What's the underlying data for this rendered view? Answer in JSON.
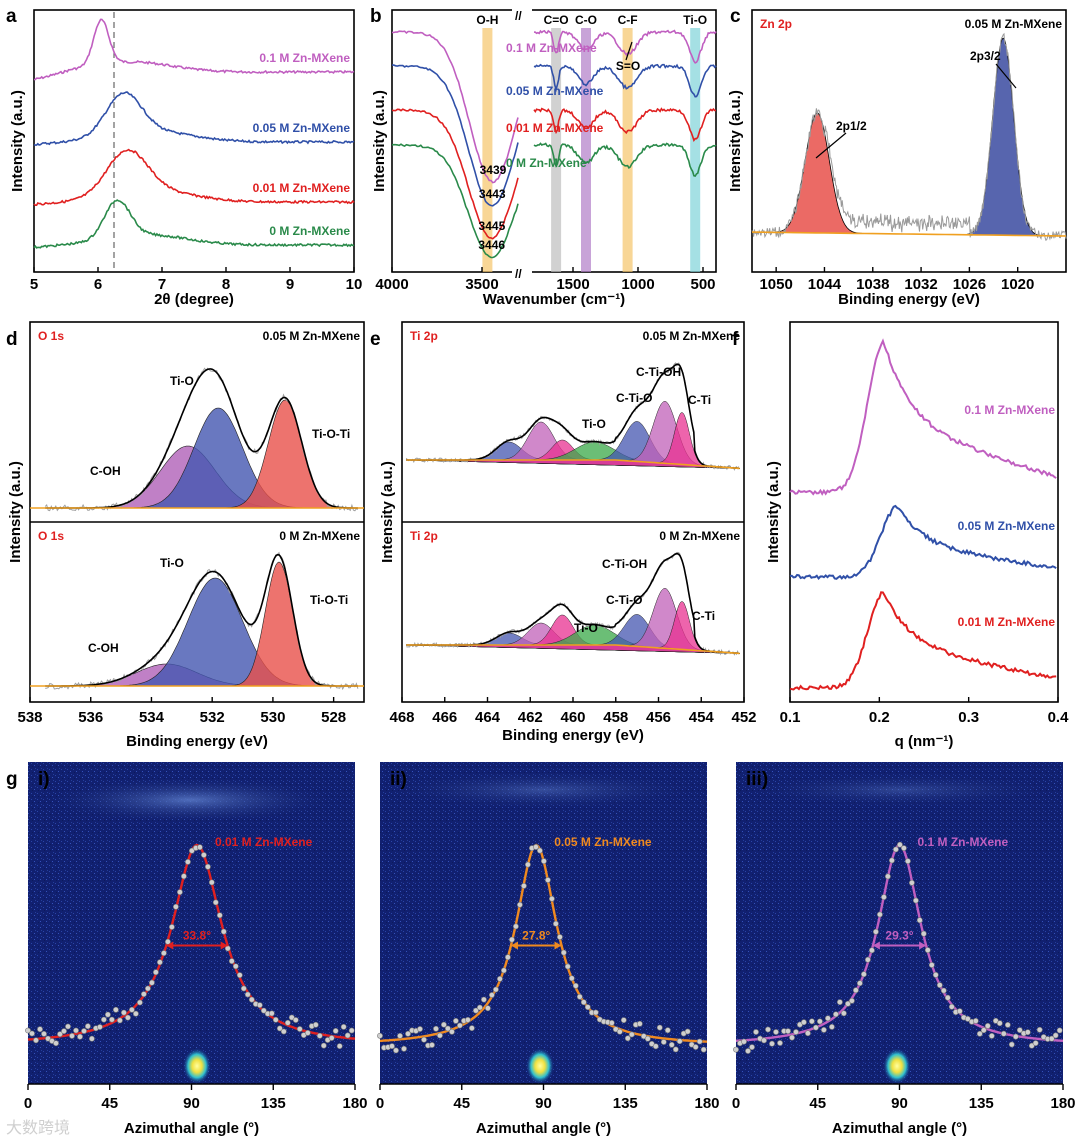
{
  "panels": {
    "a": {
      "letter": "a"
    },
    "b": {
      "letter": "b"
    },
    "c": {
      "letter": "c"
    },
    "d": {
      "letter": "d"
    },
    "e": {
      "letter": "e"
    },
    "f": {
      "letter": "f"
    },
    "g": {
      "letter": "g"
    }
  },
  "watermark": "大数跨境",
  "chart_data": [
    {
      "id": "a",
      "type": "line",
      "title": "",
      "xlabel": "2θ (degree)",
      "ylabel": "Intensity (a.u.)",
      "xlim": [
        5,
        10
      ],
      "xticks": [
        5,
        6,
        7,
        8,
        9,
        10
      ],
      "reference_line_x": 6.25,
      "series": [
        {
          "name": "0.1 M Zn-MXene",
          "color": "#c05fc0",
          "peak_x": 6.05
        },
        {
          "name": "0.05 M Zn-MXene",
          "color": "#3050a8",
          "peak_x": 6.4
        },
        {
          "name": "0.01 M Zn-MXene",
          "color": "#e02020",
          "peak_x": 6.45
        },
        {
          "name": "0 M Zn-MXene",
          "color": "#2a8a4a",
          "peak_x": 6.3
        }
      ]
    },
    {
      "id": "b",
      "type": "line",
      "title": "",
      "xlabel": "Wavenumber (cm⁻¹)",
      "ylabel": "Intensity (a.u.)",
      "xticks": [
        4000,
        3500,
        1500,
        1000,
        500
      ],
      "axis_break": true,
      "bands": [
        {
          "label": "O-H",
          "x": 3470,
          "color": "#f5c46a"
        },
        {
          "label": "C=O",
          "x": 1630,
          "color": "#bdbdbd"
        },
        {
          "label": "C-O",
          "x": 1400,
          "color": "#b07cc8"
        },
        {
          "label": "C-F",
          "x": 1080,
          "color": "#f5c46a"
        },
        {
          "label": "Ti-O",
          "x": 560,
          "color": "#7fd3d8"
        }
      ],
      "annotations": [
        "S=O"
      ],
      "series": [
        {
          "name": "0.1 M Zn-MXene",
          "color": "#c05fc0",
          "oh_min": 3439
        },
        {
          "name": "0.05 M Zn-MXene",
          "color": "#3050a8",
          "oh_min": 3443
        },
        {
          "name": "0.01 M Zn-MXene",
          "color": "#e02020",
          "oh_min": 3445
        },
        {
          "name": "0 M Zn-MXene",
          "color": "#2a8a4a",
          "oh_min": 3446
        }
      ]
    },
    {
      "id": "c",
      "type": "area",
      "title": "Zn 2p",
      "sample": "0.05 M Zn-MXene",
      "xlabel": "Binding energy (eV)",
      "ylabel": "Intensity (a.u.)",
      "xlim": [
        1053,
        1014
      ],
      "xticks": [
        1050,
        1044,
        1038,
        1032,
        1026,
        1020
      ],
      "peaks": [
        {
          "label": "2p1/2",
          "center": 1044.9,
          "color": "#e8504a"
        },
        {
          "label": "2p3/2",
          "center": 1021.8,
          "color": "#3a4aa0"
        }
      ]
    },
    {
      "id": "d",
      "type": "area",
      "title": "O 1s",
      "xlabel": "Binding energy (eV)",
      "ylabel": "Intensity (a.u.)",
      "xlim": [
        538,
        527
      ],
      "xticks": [
        538,
        536,
        534,
        532,
        530,
        528
      ],
      "subplots": [
        {
          "sample": "0.05 M Zn-MXene",
          "peaks": [
            {
              "label": "C-OH",
              "center": 532.8,
              "color": "#b060b8"
            },
            {
              "label": "Ti-O",
              "center": 531.8,
              "color": "#4456b0"
            },
            {
              "label": "Ti-O-Ti",
              "center": 529.6,
              "color": "#e8504a"
            }
          ]
        },
        {
          "sample": "0 M Zn-MXene",
          "peaks": [
            {
              "label": "C-OH",
              "center": 533.5,
              "color": "#b060b8"
            },
            {
              "label": "Ti-O",
              "center": 531.9,
              "color": "#4456b0"
            },
            {
              "label": "Ti-O-Ti",
              "center": 529.8,
              "color": "#e8504a"
            }
          ]
        }
      ]
    },
    {
      "id": "e",
      "type": "area",
      "title": "Ti 2p",
      "xlabel": "Binding energy (eV)",
      "ylabel": "Intensity (a.u.)",
      "xlim": [
        468,
        452
      ],
      "xticks": [
        468,
        466,
        464,
        462,
        460,
        458,
        456,
        454,
        452
      ],
      "subplots": [
        {
          "sample": "0.05 M Zn-MXene",
          "labels": [
            "C-Ti-OH",
            "C-Ti-O",
            "Ti-O",
            "C-Ti"
          ]
        },
        {
          "sample": "0 M Zn-MXene",
          "labels": [
            "C-Ti-OH",
            "C-Ti-O",
            "Ti-O",
            "C-Ti"
          ]
        }
      ]
    },
    {
      "id": "f",
      "type": "line",
      "title": "",
      "xlabel": "q (nm⁻¹)",
      "ylabel": "Intensity (a.u.)",
      "xlim": [
        0.1,
        0.4
      ],
      "xticks": [
        0.1,
        0.2,
        0.3,
        0.4
      ],
      "series": [
        {
          "name": "0.1 M Zn-MXene",
          "color": "#c05fc0",
          "peak_q": 0.205
        },
        {
          "name": "0.05 M Zn-MXene",
          "color": "#3050a8",
          "peak_q": 0.22
        },
        {
          "name": "0.01 M Zn-MXene",
          "color": "#e02020",
          "peak_q": 0.205
        }
      ]
    },
    {
      "id": "g",
      "type": "scatter",
      "title": "",
      "xlabel": "Azimuthal angle (°)",
      "xlim": [
        0,
        180
      ],
      "xticks": [
        0,
        45,
        90,
        135,
        180
      ],
      "subplots": [
        {
          "index": "i)",
          "sample": "0.01 M Zn-MXene",
          "fwhm": "33.8°",
          "color": "#e02020",
          "center": 93
        },
        {
          "index": "ii)",
          "sample": "0.05 M Zn-MXene",
          "fwhm": "27.8°",
          "color": "#f08a20",
          "center": 86
        },
        {
          "index": "iii)",
          "sample": "0.1 M Zn-MXene",
          "fwhm": "29.3°",
          "color": "#c05fc0",
          "center": 90
        }
      ]
    }
  ]
}
